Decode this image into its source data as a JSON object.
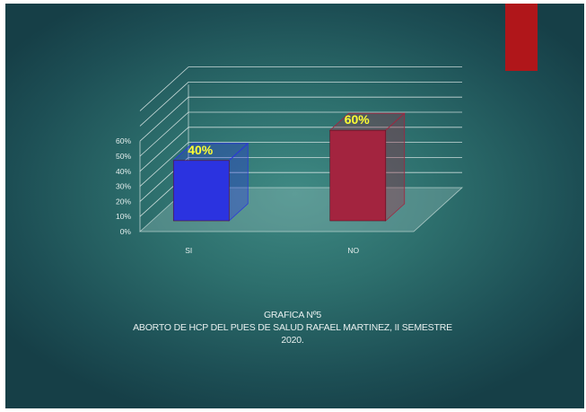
{
  "slide": {
    "accent_color": "#b0161a"
  },
  "caption": {
    "line1": "GRAFICA Nº5",
    "line2": "ABORTO DE HCP DEL PUES DE SALUD RAFAEL MARTINEZ, II SEMESTRE",
    "line3": "2020."
  },
  "chart_data": {
    "type": "bar",
    "categories": [
      "SI",
      "NO"
    ],
    "values": [
      40,
      60
    ],
    "data_labels": [
      "40%",
      "60%"
    ],
    "colors": [
      "#2b33e0",
      "#a3243f"
    ],
    "label_color": "#ffff33",
    "yticks": [
      "0%",
      "10%",
      "20%",
      "30%",
      "40%",
      "50%",
      "60%"
    ],
    "ylim": [
      0,
      60
    ],
    "grid": true,
    "three_d": true,
    "legend": "none"
  }
}
